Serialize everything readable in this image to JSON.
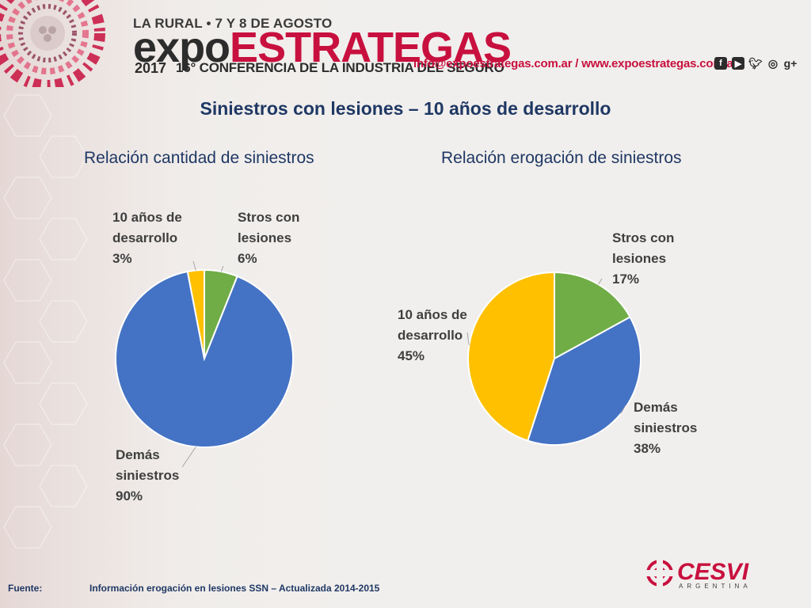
{
  "header": {
    "event_top": "LA RURAL • 7 Y 8 DE AGOSTO",
    "event_expo": "expo",
    "event_name": "ESTRATEGAS",
    "event_year": "2017",
    "event_conference": "16° CONFERENCIA DE LA INDUSTRIA DEL SEGURO",
    "contact": "info@expoestrategas.com.ar / www.expoestrategas.com.ar",
    "social_icons": [
      "facebook-icon",
      "youtube-icon",
      "twitter-icon",
      "instagram-icon",
      "google-plus-icon"
    ]
  },
  "title": "Siniestros con lesiones – 10 años de desarrollo",
  "chart_data": [
    {
      "type": "pie",
      "title": "Relación cantidad de siniestros",
      "slices": [
        {
          "label": [
            "Stros con",
            "lesiones"
          ],
          "value": 6,
          "display": "6%",
          "color": "#70ad47"
        },
        {
          "label": [
            "Demás",
            "siniestros"
          ],
          "value": 90,
          "display": "90%",
          "color": "#4472c4"
        },
        {
          "label": [
            "10 años de",
            "desarrollo"
          ],
          "value": 3,
          "display": "3%",
          "color": "#ffc000"
        }
      ]
    },
    {
      "type": "pie",
      "title": "Relación erogación de siniestros",
      "slices": [
        {
          "label": [
            "Stros con",
            "lesiones"
          ],
          "value": 17,
          "display": "17%",
          "color": "#70ad47"
        },
        {
          "label": [
            "Demás",
            "siniestros"
          ],
          "value": 38,
          "display": "38%",
          "color": "#4472c4"
        },
        {
          "label": [
            "10 años de",
            "desarrollo"
          ],
          "value": 45,
          "display": "45%",
          "color": "#ffc000"
        }
      ]
    }
  ],
  "footer": {
    "fuente_label": "Fuente:",
    "fuente_text": "Información erogación en lesiones SSN – Actualizada 2014-2015",
    "logo_text": "CESVI",
    "logo_subtext": "ARGENTINA"
  }
}
